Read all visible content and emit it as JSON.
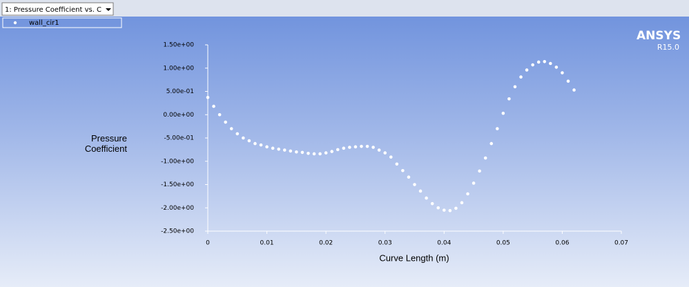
{
  "toolbar": {
    "dropdown": "1: Pressure Coefficient vs. C"
  },
  "watermark": {
    "brand": "ANSYS",
    "version": "R15.0"
  },
  "chart_data": {
    "type": "scatter",
    "xlabel": "Curve Length (m)",
    "ylabel": "Pressure Coefficient",
    "x": [
      0,
      0.001,
      0.002,
      0.003,
      0.004,
      0.005,
      0.006,
      0.007,
      0.008,
      0.009,
      0.01,
      0.011,
      0.012,
      0.013,
      0.014,
      0.015,
      0.016,
      0.017,
      0.018,
      0.019,
      0.02,
      0.021,
      0.022,
      0.023,
      0.024,
      0.025,
      0.026,
      0.027,
      0.028,
      0.029,
      0.03,
      0.031,
      0.032,
      0.033,
      0.034,
      0.035,
      0.036,
      0.037,
      0.038,
      0.039,
      0.04,
      0.041,
      0.042,
      0.043,
      0.044,
      0.045,
      0.046,
      0.047,
      0.048,
      0.049,
      0.05,
      0.051,
      0.052,
      0.053,
      0.054,
      0.055,
      0.056,
      0.057,
      0.058,
      0.059,
      0.06,
      0.061,
      0.062
    ],
    "series": [
      {
        "name": "wall_cir1",
        "color": "#ffffff",
        "values": [
          0.37,
          0.18,
          0.0,
          -0.16,
          -0.3,
          -0.41,
          -0.5,
          -0.56,
          -0.62,
          -0.65,
          -0.69,
          -0.72,
          -0.74,
          -0.76,
          -0.78,
          -0.8,
          -0.81,
          -0.83,
          -0.84,
          -0.84,
          -0.82,
          -0.79,
          -0.75,
          -0.72,
          -0.7,
          -0.69,
          -0.68,
          -0.68,
          -0.7,
          -0.76,
          -0.82,
          -0.91,
          -1.06,
          -1.2,
          -1.34,
          -1.5,
          -1.64,
          -1.79,
          -1.91,
          -2.0,
          -2.05,
          -2.06,
          -2.01,
          -1.89,
          -1.7,
          -1.47,
          -1.21,
          -0.93,
          -0.62,
          -0.3,
          0.03,
          0.34,
          0.6,
          0.81,
          0.96,
          1.07,
          1.13,
          1.14,
          1.1,
          1.02,
          0.9,
          0.72,
          0.53
        ]
      }
    ],
    "xlim": [
      0,
      0.07
    ],
    "xticks": [
      0,
      0.01,
      0.02,
      0.03,
      0.04,
      0.05,
      0.06,
      0.07
    ],
    "ylim": [
      -2.5,
      1.5
    ],
    "yticks": [
      {
        "value": -2.5,
        "label": "-2.50e+00"
      },
      {
        "value": -2,
        "label": "-2.00e+00"
      },
      {
        "value": -1.5,
        "label": "-1.50e+00"
      },
      {
        "value": -1,
        "label": "-1.00e+00"
      },
      {
        "value": -0.5,
        "label": "-5.00e-01"
      },
      {
        "value": 0,
        "label": "0.00e+00"
      },
      {
        "value": 0.5,
        "label": "5.00e-01"
      },
      {
        "value": 1,
        "label": "1.00e+00"
      },
      {
        "value": 1.5,
        "label": "1.50e+00"
      }
    ],
    "grid": false
  }
}
